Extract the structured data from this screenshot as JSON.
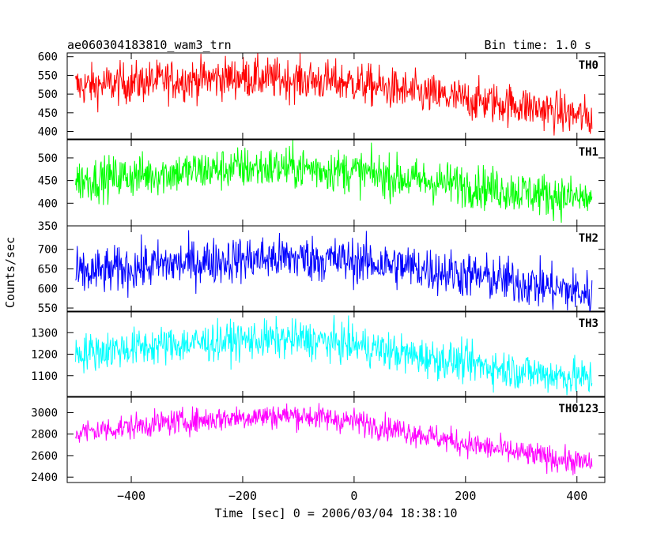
{
  "chart_data": {
    "type": "line",
    "title": "ae060304183810_wam3_trn",
    "subtitle": "Bin time: 1.0 s",
    "xlabel": "Time [sec] 0 = 2006/03/04 18:38:10",
    "ylabel": "Counts/sec",
    "xlim": [
      -515,
      450
    ],
    "xticks": [
      -400,
      -200,
      0,
      200,
      400
    ],
    "x_start": -500,
    "x_end": 427,
    "grid": false,
    "panels": [
      {
        "name": "TH0",
        "color": "#ff0000",
        "ylim": [
          380,
          610
        ],
        "yticks": [
          400,
          450,
          500,
          550,
          600
        ],
        "trend": [
          [
            -500,
            520
          ],
          [
            -350,
            535
          ],
          [
            -200,
            545
          ],
          [
            -100,
            538
          ],
          [
            0,
            530
          ],
          [
            100,
            505
          ],
          [
            200,
            485
          ],
          [
            300,
            470
          ],
          [
            427,
            435
          ]
        ],
        "noise": 28
      },
      {
        "name": "TH1",
        "color": "#00ff00",
        "ylim": [
          350,
          540
        ],
        "yticks": [
          350,
          400,
          450,
          500
        ],
        "trend": [
          [
            -500,
            450
          ],
          [
            -350,
            465
          ],
          [
            -200,
            478
          ],
          [
            -100,
            478
          ],
          [
            0,
            470
          ],
          [
            100,
            452
          ],
          [
            200,
            440
          ],
          [
            300,
            425
          ],
          [
            427,
            408
          ]
        ],
        "noise": 24
      },
      {
        "name": "TH2",
        "color": "#0000ff",
        "ylim": [
          540,
          760
        ],
        "yticks": [
          550,
          600,
          650,
          700
        ],
        "trend": [
          [
            -500,
            635
          ],
          [
            -350,
            660
          ],
          [
            -200,
            675
          ],
          [
            -100,
            678
          ],
          [
            0,
            670
          ],
          [
            100,
            655
          ],
          [
            200,
            635
          ],
          [
            300,
            615
          ],
          [
            427,
            585
          ]
        ],
        "noise": 30
      },
      {
        "name": "TH3",
        "color": "#00ffff",
        "ylim": [
          1000,
          1400
        ],
        "yticks": [
          1100,
          1200,
          1300
        ],
        "trend": [
          [
            -500,
            1205
          ],
          [
            -350,
            1240
          ],
          [
            -200,
            1265
          ],
          [
            -100,
            1270
          ],
          [
            0,
            1245
          ],
          [
            100,
            1195
          ],
          [
            200,
            1160
          ],
          [
            300,
            1120
          ],
          [
            427,
            1085
          ]
        ],
        "noise": 45
      },
      {
        "name": "TH0123",
        "color": "#ff00ff",
        "ylim": [
          2350,
          3150
        ],
        "yticks": [
          2400,
          2600,
          2800,
          3000
        ],
        "trend": [
          [
            -500,
            2810
          ],
          [
            -350,
            2900
          ],
          [
            -200,
            2960
          ],
          [
            -100,
            2975
          ],
          [
            0,
            2920
          ],
          [
            100,
            2820
          ],
          [
            200,
            2710
          ],
          [
            300,
            2620
          ],
          [
            427,
            2520
          ]
        ],
        "noise": 60
      }
    ]
  }
}
